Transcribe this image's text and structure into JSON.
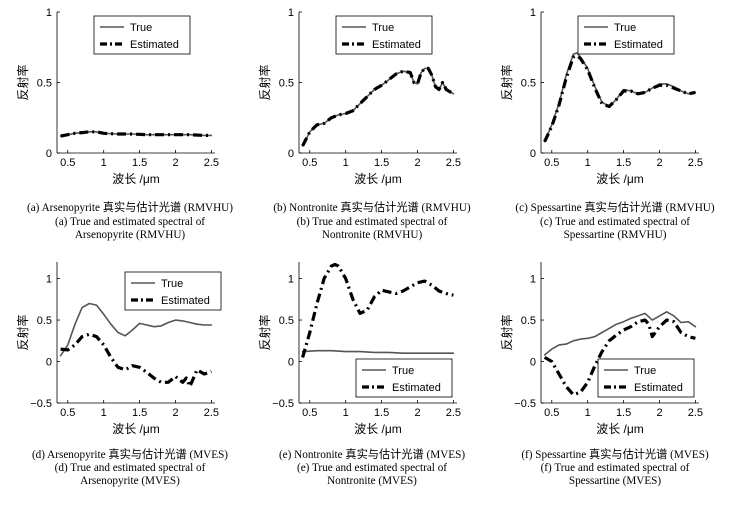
{
  "figure": {
    "legend_true": "True",
    "legend_estimated": "Estimated",
    "ylabel": "反射率",
    "xlabel": "波长 /μm"
  },
  "chart_data": [
    {
      "type": "line",
      "panel": "a",
      "caption_cn": "(a) Arsenopyrite 真实与估计光谱  (RMVHU)",
      "caption_en1": "(a) True and estimated spectral of",
      "caption_en2": "Arsenopyrite (RMVHU)",
      "xlabel": "波长 /μm",
      "ylabel": "反射率",
      "xlim": [
        0.35,
        2.55
      ],
      "ylim": [
        0,
        1
      ],
      "xticks": [
        0.5,
        1,
        1.5,
        2,
        2.5
      ],
      "yticks": [
        0,
        0.5,
        1
      ],
      "legend_position": "top-right",
      "series": [
        {
          "name": "True",
          "style": "solid",
          "color": "#555555",
          "x": [
            0.4,
            0.5,
            0.6,
            0.7,
            0.8,
            0.9,
            1.0,
            1.2,
            1.4,
            1.6,
            1.8,
            2.0,
            2.2,
            2.4,
            2.5
          ],
          "y": [
            0.12,
            0.13,
            0.14,
            0.145,
            0.15,
            0.15,
            0.14,
            0.135,
            0.135,
            0.13,
            0.13,
            0.13,
            0.13,
            0.125,
            0.125
          ]
        },
        {
          "name": "Estimated",
          "style": "dashdot",
          "color": "#000000",
          "x": [
            0.4,
            0.5,
            0.6,
            0.7,
            0.8,
            0.9,
            1.0,
            1.2,
            1.4,
            1.6,
            1.8,
            2.0,
            2.2,
            2.4,
            2.5
          ],
          "y": [
            0.12,
            0.13,
            0.14,
            0.145,
            0.15,
            0.15,
            0.14,
            0.135,
            0.135,
            0.13,
            0.13,
            0.13,
            0.13,
            0.125,
            0.125
          ]
        }
      ]
    },
    {
      "type": "line",
      "panel": "b",
      "caption_cn": "(b) Nontronite 真实与估计光谱  (RMVHU)",
      "caption_en1": "(b) True and estimated spectral of",
      "caption_en2": "Nontronite (RMVHU)",
      "xlabel": "波长 /μm",
      "ylabel": "反射率",
      "xlim": [
        0.35,
        2.55
      ],
      "ylim": [
        0,
        1
      ],
      "xticks": [
        0.5,
        1,
        1.5,
        2,
        2.5
      ],
      "yticks": [
        0,
        0.5,
        1
      ],
      "legend_position": "top-right",
      "series": [
        {
          "name": "True",
          "style": "solid",
          "color": "#555555",
          "x": [
            0.4,
            0.45,
            0.5,
            0.6,
            0.7,
            0.8,
            0.9,
            1.0,
            1.1,
            1.2,
            1.3,
            1.4,
            1.5,
            1.6,
            1.7,
            1.8,
            1.9,
            1.95,
            2.0,
            2.05,
            2.1,
            2.15,
            2.2,
            2.25,
            2.3,
            2.35,
            2.4,
            2.5
          ],
          "y": [
            0.05,
            0.1,
            0.15,
            0.2,
            0.21,
            0.25,
            0.27,
            0.28,
            0.3,
            0.35,
            0.4,
            0.45,
            0.48,
            0.52,
            0.56,
            0.58,
            0.57,
            0.5,
            0.49,
            0.57,
            0.6,
            0.6,
            0.55,
            0.47,
            0.45,
            0.5,
            0.45,
            0.42
          ]
        },
        {
          "name": "Estimated",
          "style": "dashdot",
          "color": "#000000",
          "x": [
            0.4,
            0.45,
            0.5,
            0.6,
            0.7,
            0.8,
            0.9,
            1.0,
            1.1,
            1.2,
            1.3,
            1.4,
            1.5,
            1.6,
            1.7,
            1.8,
            1.9,
            1.95,
            2.0,
            2.05,
            2.1,
            2.15,
            2.2,
            2.25,
            2.3,
            2.35,
            2.4,
            2.5
          ],
          "y": [
            0.05,
            0.1,
            0.15,
            0.2,
            0.21,
            0.25,
            0.27,
            0.28,
            0.3,
            0.35,
            0.4,
            0.45,
            0.48,
            0.52,
            0.56,
            0.58,
            0.57,
            0.5,
            0.49,
            0.57,
            0.6,
            0.6,
            0.55,
            0.47,
            0.45,
            0.5,
            0.45,
            0.42
          ]
        }
      ]
    },
    {
      "type": "line",
      "panel": "c",
      "caption_cn": "(c) Spessartine 真实与估计光谱  (RMVHU)",
      "caption_en1": "(c) True and estimated spectral of",
      "caption_en2": "Spessartine (RMVHU)",
      "xlabel": "波长 /μm",
      "ylabel": "反射率",
      "xlim": [
        0.35,
        2.55
      ],
      "ylim": [
        0,
        1
      ],
      "xticks": [
        0.5,
        1,
        1.5,
        2,
        2.5
      ],
      "yticks": [
        0,
        0.5,
        1
      ],
      "legend_position": "top-right",
      "series": [
        {
          "name": "True",
          "style": "solid",
          "color": "#555555",
          "x": [
            0.4,
            0.5,
            0.6,
            0.7,
            0.8,
            0.85,
            0.9,
            1.0,
            1.1,
            1.2,
            1.3,
            1.4,
            1.5,
            1.6,
            1.7,
            1.8,
            1.9,
            2.0,
            2.1,
            2.2,
            2.3,
            2.4,
            2.5
          ],
          "y": [
            0.08,
            0.2,
            0.35,
            0.55,
            0.7,
            0.71,
            0.68,
            0.6,
            0.47,
            0.36,
            0.33,
            0.38,
            0.45,
            0.44,
            0.42,
            0.43,
            0.46,
            0.49,
            0.49,
            0.47,
            0.44,
            0.42,
            0.43
          ]
        },
        {
          "name": "Estimated",
          "style": "dashdot",
          "color": "#000000",
          "x": [
            0.4,
            0.5,
            0.6,
            0.7,
            0.8,
            0.85,
            0.9,
            1.0,
            1.1,
            1.2,
            1.3,
            1.4,
            1.5,
            1.6,
            1.7,
            1.8,
            1.9,
            2.0,
            2.1,
            2.2,
            2.3,
            2.4,
            2.5
          ],
          "y": [
            0.08,
            0.19,
            0.34,
            0.53,
            0.68,
            0.69,
            0.67,
            0.59,
            0.46,
            0.35,
            0.33,
            0.38,
            0.44,
            0.44,
            0.42,
            0.43,
            0.46,
            0.48,
            0.48,
            0.46,
            0.44,
            0.42,
            0.43
          ]
        }
      ]
    },
    {
      "type": "line",
      "panel": "d",
      "caption_cn": "(d) Arsenopyrite 真实与估计光谱 (MVES)",
      "caption_en1": "(d) True and estimated spectral of",
      "caption_en2": "Arsenopyrite (MVES)",
      "xlabel": "波长 /μm",
      "ylabel": "反射率",
      "xlim": [
        0.35,
        2.55
      ],
      "ylim": [
        -0.5,
        1.2
      ],
      "xticks": [
        0.5,
        1,
        1.5,
        2,
        2.5
      ],
      "yticks": [
        -0.5,
        0,
        0.5,
        1
      ],
      "legend_position": "top-right",
      "series": [
        {
          "name": "True",
          "style": "solid",
          "color": "#555555",
          "x": [
            0.4,
            0.5,
            0.6,
            0.7,
            0.8,
            0.9,
            1.0,
            1.1,
            1.2,
            1.3,
            1.4,
            1.5,
            1.6,
            1.7,
            1.8,
            1.9,
            2.0,
            2.1,
            2.2,
            2.3,
            2.4,
            2.5
          ],
          "y": [
            0.07,
            0.2,
            0.45,
            0.65,
            0.7,
            0.68,
            0.57,
            0.45,
            0.35,
            0.31,
            0.38,
            0.46,
            0.44,
            0.42,
            0.43,
            0.47,
            0.5,
            0.49,
            0.47,
            0.45,
            0.44,
            0.44
          ]
        },
        {
          "name": "Estimated",
          "style": "dashdot",
          "color": "#000000",
          "x": [
            0.4,
            0.5,
            0.6,
            0.7,
            0.8,
            0.9,
            1.0,
            1.1,
            1.2,
            1.3,
            1.4,
            1.5,
            1.6,
            1.7,
            1.8,
            1.9,
            2.0,
            2.05,
            2.1,
            2.15,
            2.2,
            2.25,
            2.3,
            2.4,
            2.5
          ],
          "y": [
            0.15,
            0.14,
            0.2,
            0.3,
            0.33,
            0.3,
            0.2,
            0.05,
            -0.07,
            -0.1,
            -0.05,
            -0.07,
            -0.13,
            -0.2,
            -0.25,
            -0.25,
            -0.18,
            -0.22,
            -0.25,
            -0.2,
            -0.3,
            -0.2,
            -0.1,
            -0.15,
            -0.12
          ]
        }
      ]
    },
    {
      "type": "line",
      "panel": "e",
      "caption_cn": "(e) Nontronite 真实与估计光谱 (MVES)",
      "caption_en1": "(e) True and estimated spectral of",
      "caption_en2": "Nontronite (MVES)",
      "xlabel": "波长 /μm",
      "ylabel": "反射率",
      "xlim": [
        0.35,
        2.55
      ],
      "ylim": [
        -0.5,
        1.2
      ],
      "xticks": [
        0.5,
        1,
        1.5,
        2,
        2.5
      ],
      "yticks": [
        -0.5,
        0,
        0.5,
        1
      ],
      "legend_position": "bottom-right",
      "series": [
        {
          "name": "True",
          "style": "solid",
          "color": "#555555",
          "x": [
            0.4,
            0.6,
            0.8,
            1.0,
            1.2,
            1.4,
            1.6,
            1.8,
            2.0,
            2.2,
            2.4,
            2.5
          ],
          "y": [
            0.12,
            0.13,
            0.13,
            0.12,
            0.12,
            0.11,
            0.11,
            0.1,
            0.1,
            0.1,
            0.1,
            0.1
          ]
        },
        {
          "name": "Estimated",
          "style": "dashdot",
          "color": "#000000",
          "x": [
            0.4,
            0.5,
            0.6,
            0.7,
            0.8,
            0.85,
            0.9,
            1.0,
            1.1,
            1.2,
            1.3,
            1.4,
            1.5,
            1.6,
            1.7,
            1.8,
            1.9,
            2.0,
            2.1,
            2.2,
            2.3,
            2.4,
            2.5
          ],
          "y": [
            0.05,
            0.35,
            0.7,
            1.0,
            1.15,
            1.17,
            1.15,
            1.0,
            0.75,
            0.58,
            0.62,
            0.78,
            0.86,
            0.84,
            0.82,
            0.85,
            0.9,
            0.95,
            0.97,
            0.92,
            0.85,
            0.82,
            0.8
          ]
        }
      ]
    },
    {
      "type": "line",
      "panel": "f",
      "caption_cn": "(f) Spessartine 真实与估计光谱 (MVES)",
      "caption_en1": "(f) True and estimated spectral of",
      "caption_en2": "Spessartine (MVES)",
      "xlabel": "波长 /μm",
      "ylabel": "反射率",
      "xlim": [
        0.35,
        2.55
      ],
      "ylim": [
        -0.5,
        1.2
      ],
      "xticks": [
        0.5,
        1,
        1.5,
        2,
        2.5
      ],
      "yticks": [
        -0.5,
        0,
        0.5,
        1
      ],
      "legend_position": "bottom-right",
      "series": [
        {
          "name": "True",
          "style": "solid",
          "color": "#555555",
          "x": [
            0.4,
            0.5,
            0.6,
            0.7,
            0.8,
            0.9,
            1.0,
            1.1,
            1.2,
            1.3,
            1.4,
            1.5,
            1.6,
            1.7,
            1.8,
            1.9,
            2.0,
            2.1,
            2.2,
            2.3,
            2.4,
            2.5
          ],
          "y": [
            0.08,
            0.15,
            0.2,
            0.21,
            0.25,
            0.27,
            0.28,
            0.3,
            0.35,
            0.4,
            0.45,
            0.48,
            0.52,
            0.55,
            0.58,
            0.5,
            0.55,
            0.6,
            0.55,
            0.47,
            0.48,
            0.42
          ]
        },
        {
          "name": "Estimated",
          "style": "dashdot",
          "color": "#000000",
          "x": [
            0.4,
            0.5,
            0.6,
            0.7,
            0.8,
            0.9,
            1.0,
            1.1,
            1.2,
            1.3,
            1.4,
            1.5,
            1.6,
            1.7,
            1.8,
            1.85,
            1.9,
            2.0,
            2.1,
            2.2,
            2.3,
            2.4,
            2.5
          ],
          "y": [
            0.05,
            0.0,
            -0.15,
            -0.3,
            -0.4,
            -0.37,
            -0.25,
            -0.05,
            0.12,
            0.25,
            0.32,
            0.38,
            0.42,
            0.48,
            0.5,
            0.45,
            0.3,
            0.42,
            0.5,
            0.48,
            0.35,
            0.3,
            0.28
          ]
        }
      ]
    }
  ]
}
